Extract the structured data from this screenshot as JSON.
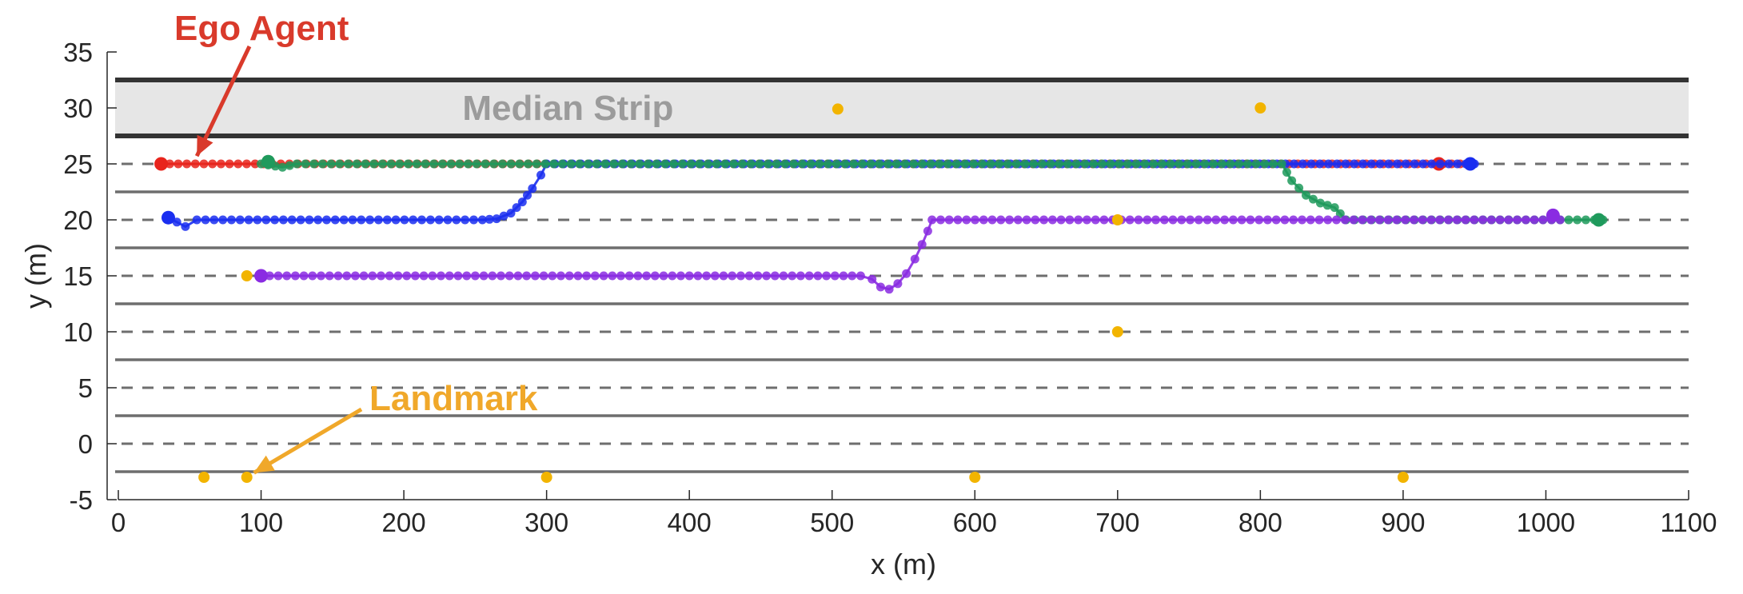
{
  "chart_data": {
    "type": "scatter",
    "xlabel": "x (m)",
    "ylabel": "y (m)",
    "xlim": [
      0,
      1100
    ],
    "ylim": [
      -5,
      35
    ],
    "xticks": [
      "0",
      "100",
      "200",
      "300",
      "400",
      "500",
      "600",
      "700",
      "800",
      "900",
      "1000",
      "1100"
    ],
    "yticks": [
      "-5",
      "0",
      "5",
      "10",
      "15",
      "20",
      "25",
      "30",
      "35"
    ],
    "grid": false,
    "colors": {
      "ego": "#e8241c",
      "blue": "#1a2ef0",
      "green": "#1f9a5c",
      "purple": "#8a2be2",
      "landmark": "#f2b400",
      "annotation_ego": "#d93a2b",
      "annotation_landmark": "#f0a82a",
      "median_fill": "#e6e6e6",
      "lane_solid": "#6e6e6e",
      "lane_dashed": "#6e6e6e"
    },
    "median_strip": {
      "label": "Median Strip",
      "y_range": [
        27.5,
        32.5
      ]
    },
    "lane_lines": {
      "solid": [
        -2.5,
        2.5,
        7.5,
        12.5,
        17.5,
        22.5,
        27.5,
        32.5
      ],
      "dashed": [
        0,
        5,
        10,
        15,
        20,
        25
      ]
    },
    "annotations": [
      {
        "text": "Ego Agent",
        "color": "#d93a2b",
        "arrow_to": [
          55,
          25.7
        ]
      },
      {
        "text": "Landmark",
        "color": "#f0a82a",
        "arrow_to": [
          95,
          -2.6
        ]
      }
    ],
    "series": [
      {
        "key": "ego",
        "color": "#e8241c",
        "points": [
          [
            30,
            25
          ],
          [
            940,
            25
          ]
        ],
        "start_marker": [
          30,
          25
        ],
        "end_marker": [
          925,
          25
        ]
      },
      {
        "key": "blue",
        "color": "#1a2ef0",
        "points": [
          [
            35,
            20.2
          ],
          [
            47,
            19.4
          ],
          [
            55,
            20
          ],
          [
            255,
            20
          ],
          [
            265,
            20.1
          ],
          [
            275,
            20.6
          ],
          [
            283,
            21.6
          ],
          [
            290,
            22.8
          ],
          [
            296,
            24
          ],
          [
            300,
            25
          ],
          [
            950,
            25
          ]
        ],
        "start_marker": [
          35,
          20.2
        ],
        "end_marker": [
          947,
          25
        ]
      },
      {
        "key": "green",
        "color": "#1f9a5c",
        "points": [
          [
            100,
            25
          ],
          [
            115,
            24.7
          ],
          [
            125,
            25
          ],
          [
            815,
            25
          ],
          [
            822,
            23.5
          ],
          [
            832,
            22.2
          ],
          [
            842,
            21.5
          ],
          [
            852,
            21.1
          ],
          [
            860,
            20
          ],
          [
            1040,
            20
          ]
        ],
        "start_marker": [
          105,
          25.2
        ],
        "end_marker": [
          1037,
          20
        ]
      },
      {
        "key": "purple",
        "color": "#8a2be2",
        "points": [
          [
            100,
            15
          ],
          [
            520,
            15
          ],
          [
            528,
            14.7
          ],
          [
            534,
            14
          ],
          [
            540,
            13.8
          ],
          [
            546,
            14.3
          ],
          [
            552,
            15.2
          ],
          [
            558,
            16.5
          ],
          [
            563,
            17.8
          ],
          [
            567,
            19
          ],
          [
            570,
            20
          ],
          [
            1010,
            20
          ]
        ],
        "start_marker": [
          100,
          15
        ],
        "end_marker": [
          1005,
          20.4
        ]
      }
    ],
    "landmarks": [
      [
        60,
        -3
      ],
      [
        90,
        -3
      ],
      [
        300,
        -3
      ],
      [
        600,
        -3
      ],
      [
        900,
        -3
      ],
      [
        700,
        10
      ],
      [
        90,
        15
      ],
      [
        700,
        20
      ],
      [
        504,
        29.9
      ],
      [
        800,
        30
      ]
    ]
  }
}
